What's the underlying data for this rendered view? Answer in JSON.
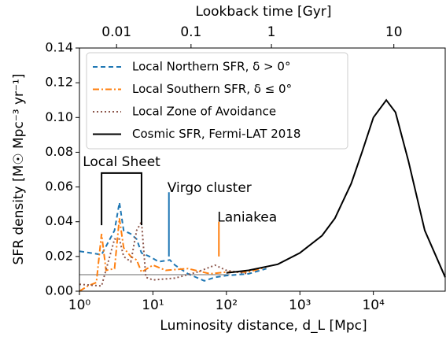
{
  "chart_data": {
    "type": "line",
    "xlabel": "Luminosity distance, d_L  [Mpc]",
    "ylabel": "SFR density  [M☉ Mpc⁻³ yr⁻¹]",
    "x2label": "Lookback time  [Gyr]",
    "xscale": "log",
    "xlim": [
      1,
      95000
    ],
    "xticks": [
      {
        "value": 1,
        "label": "10⁰"
      },
      {
        "value": 10,
        "label": "10¹"
      },
      {
        "value": 100,
        "label": "10²"
      },
      {
        "value": 1000,
        "label": "10³"
      },
      {
        "value": 10000,
        "label": "10⁴"
      }
    ],
    "ylim": [
      0,
      0.14
    ],
    "yticks": [
      {
        "value": 0,
        "label": "0.00"
      },
      0.02,
      0.04,
      0.06,
      0.08,
      {
        "value": 0.1,
        "label": "0.10"
      },
      0.12,
      0.14
    ],
    "x2ticks": [
      0.01,
      0.1,
      1,
      10
    ],
    "x2tick_distances": [
      3.2,
      33,
      410,
      19000
    ],
    "legend": "upper left",
    "series": [
      {
        "name": "Local Northern SFR, δ > 0°",
        "color": "#1f77b4",
        "dash": "6,4",
        "x": [
          1,
          2,
          3,
          3.5,
          4,
          5,
          6,
          7,
          9,
          12,
          17,
          20,
          30,
          50,
          70,
          100,
          200,
          350
        ],
        "values": [
          0.023,
          0.021,
          0.035,
          0.051,
          0.035,
          0.033,
          0.03,
          0.022,
          0.02,
          0.017,
          0.018,
          0.015,
          0.01,
          0.006,
          0.008,
          0.009,
          0.01,
          0.013
        ]
      },
      {
        "name": "Local Southern SFR, δ ≤ 0°",
        "color": "#ff7f0e",
        "dash": "8,3,2,3",
        "x": [
          1,
          1.3,
          1.7,
          2,
          2.3,
          3,
          3.5,
          4,
          5,
          6,
          7,
          10,
          15,
          30,
          60,
          100,
          200,
          350
        ],
        "values": [
          0.0,
          0.003,
          0.005,
          0.033,
          0.012,
          0.013,
          0.042,
          0.025,
          0.02,
          0.018,
          0.011,
          0.015,
          0.012,
          0.013,
          0.01,
          0.011,
          0.011,
          0.014
        ]
      },
      {
        "name": "Local Zone of Avoidance",
        "color": "#8c564b",
        "dash": "2,3",
        "x": [
          1,
          2,
          3,
          3.5,
          4,
          5,
          6,
          7,
          8,
          10,
          20,
          40,
          70,
          100,
          200
        ],
        "values": [
          0.004,
          0.003,
          0.03,
          0.03,
          0.02,
          0.017,
          0.035,
          0.04,
          0.008,
          0.0065,
          0.0075,
          0.011,
          0.015,
          0.012,
          0.01
        ]
      },
      {
        "name": "Cosmic SFR, Fermi-LAT 2018",
        "color": "#000000",
        "dash": "none",
        "x": [
          100,
          200,
          500,
          1000,
          2000,
          3000,
          5000,
          7000,
          10000,
          15000,
          20000,
          30000,
          50000,
          95000
        ],
        "values": [
          0.0105,
          0.012,
          0.0155,
          0.022,
          0.032,
          0.042,
          0.062,
          0.08,
          0.1,
          0.11,
          0.103,
          0.075,
          0.035,
          0.008
        ]
      }
    ],
    "reference_line": {
      "y": 0.0095,
      "x": [
        1,
        110
      ],
      "color": "#888888"
    },
    "annotations": [
      {
        "text": "Local Sheet",
        "color": "#000000",
        "x": [
          2,
          7
        ],
        "y": [
          0.038,
          0.068
        ]
      },
      {
        "text": "Virgo cluster",
        "color": "#1f77b4",
        "x": [
          16.5
        ],
        "y": [
          0.02,
          0.057
        ]
      },
      {
        "text": "Laniakea",
        "color": "#ff7f0e",
        "x": [
          79
        ],
        "y": [
          0.02,
          0.04
        ]
      }
    ]
  }
}
